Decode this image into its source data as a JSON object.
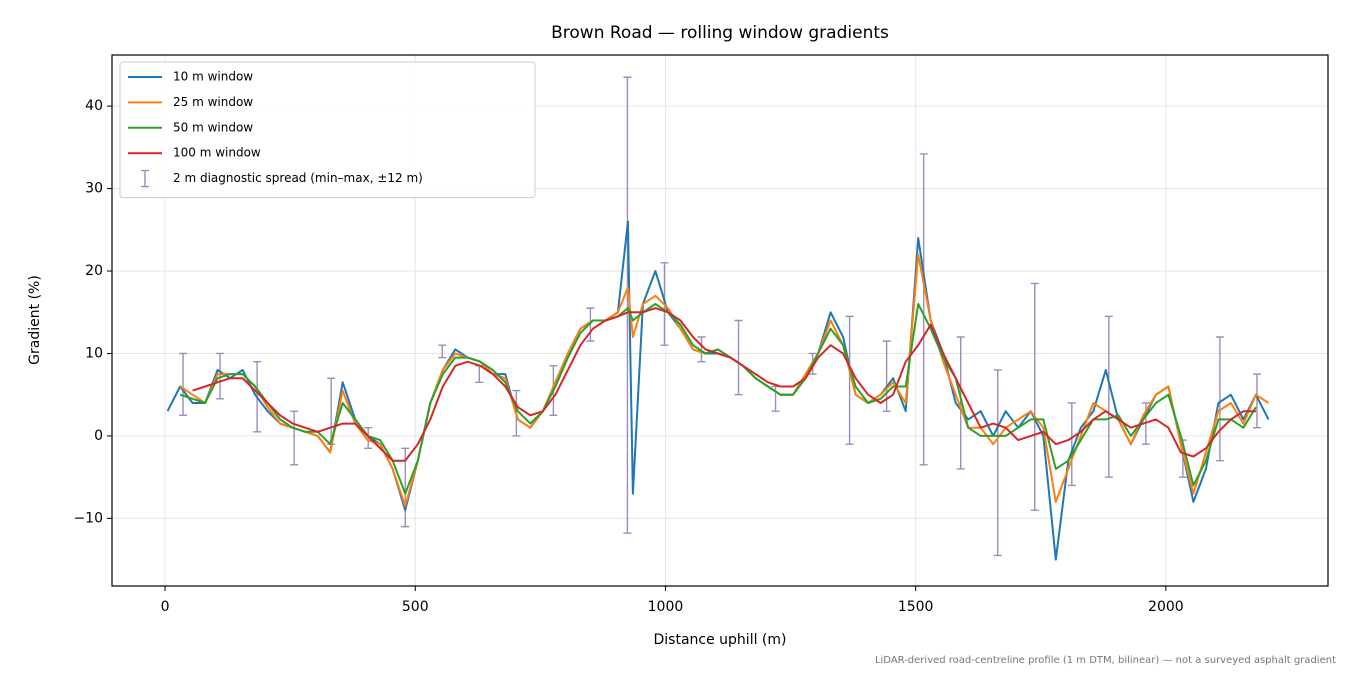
{
  "chart_data": {
    "type": "line",
    "title": "Brown Road — rolling window gradients",
    "xlabel": "Distance uphill (m)",
    "ylabel": "Gradient (%)",
    "footnote": "LiDAR-derived road-centreline profile (1 m DTM, bilinear) — not a surveyed asphalt gradient",
    "xlim": [
      -106,
      2324
    ],
    "ylim": [
      -18.2,
      46.2
    ],
    "xticks": [
      0,
      500,
      1000,
      1500,
      2000
    ],
    "yticks": [
      {
        "value": -10,
        "label": "−10"
      },
      0,
      10,
      20,
      30,
      40
    ],
    "grid": true,
    "legend": "upper left",
    "x": [
      5,
      30,
      55,
      80,
      105,
      130,
      155,
      180,
      205,
      230,
      255,
      280,
      305,
      330,
      355,
      380,
      405,
      430,
      455,
      480,
      505,
      530,
      555,
      580,
      605,
      630,
      655,
      680,
      705,
      730,
      755,
      780,
      805,
      830,
      855,
      880,
      905,
      925,
      935,
      955,
      980,
      1005,
      1030,
      1055,
      1080,
      1105,
      1130,
      1155,
      1180,
      1205,
      1230,
      1255,
      1280,
      1305,
      1330,
      1355,
      1380,
      1405,
      1430,
      1455,
      1480,
      1505,
      1530,
      1555,
      1580,
      1605,
      1630,
      1655,
      1680,
      1705,
      1730,
      1755,
      1780,
      1805,
      1830,
      1855,
      1880,
      1905,
      1930,
      1955,
      1980,
      2005,
      2030,
      2055,
      2080,
      2105,
      2130,
      2155,
      2180,
      2205
    ],
    "series": [
      {
        "name": "10 m window",
        "color": "#1f77b4",
        "values": [
          3,
          6,
          4,
          4,
          8,
          7,
          8,
          5,
          3,
          1.5,
          1,
          0.5,
          0,
          -2,
          6.5,
          2,
          0,
          -1,
          -4,
          -9,
          -3,
          4,
          8,
          10.5,
          9.5,
          9,
          7.5,
          7.5,
          2,
          1,
          3,
          6.5,
          10,
          13,
          14,
          14,
          15,
          26,
          -7,
          16,
          20,
          15,
          13,
          10.5,
          10,
          10,
          9.5,
          8.5,
          7,
          6,
          5,
          5,
          7.5,
          10,
          15,
          12,
          5,
          4,
          5,
          7,
          3,
          24,
          14,
          10,
          4,
          2,
          3,
          0,
          3,
          1,
          3,
          0,
          -15,
          -3,
          1,
          3,
          8,
          2,
          -1,
          2,
          5,
          6,
          -1,
          -8,
          -4,
          4,
          5,
          2,
          5,
          2
        ]
      },
      {
        "name": "25 m window",
        "color": "#ff7f0e",
        "values": [
          null,
          6,
          5,
          4,
          7.5,
          7.5,
          7.5,
          6,
          3.5,
          1.5,
          1,
          0.5,
          0,
          -2,
          5.5,
          1.5,
          -0.5,
          -1,
          -4,
          -8.5,
          -3,
          4,
          8,
          10,
          9.5,
          9,
          7.5,
          7,
          2,
          1,
          3,
          6.5,
          10,
          13,
          14,
          14,
          15,
          18,
          12,
          16,
          17,
          15.5,
          13,
          10.5,
          10,
          10.5,
          9.5,
          8.5,
          7,
          6,
          5,
          5,
          7.5,
          10,
          14,
          11,
          5,
          4,
          5,
          6.5,
          4,
          22,
          14,
          9,
          5,
          1,
          1,
          -1,
          1,
          2,
          3,
          1,
          -8,
          -4,
          0,
          4,
          3,
          2,
          -1,
          2.5,
          5,
          6,
          -1,
          -7,
          -2,
          3,
          4,
          1.5,
          5,
          4
        ]
      },
      {
        "name": "50 m window",
        "color": "#2ca02c",
        "values": [
          null,
          5,
          4.5,
          4,
          7,
          7.5,
          7.5,
          6,
          4,
          2,
          1,
          0.5,
          0.5,
          -1,
          4,
          2,
          0,
          -0.5,
          -3,
          -7,
          -3,
          4,
          7.5,
          9.5,
          9.5,
          9,
          8,
          6.5,
          3,
          1.5,
          3,
          6,
          9.5,
          12.5,
          14,
          14,
          14.5,
          15.5,
          14,
          15,
          16,
          15,
          13.5,
          11,
          10,
          10.5,
          9.5,
          8.5,
          7,
          6,
          5,
          5,
          7,
          10,
          13,
          11,
          6,
          4,
          4.5,
          6,
          6,
          16,
          13,
          9.5,
          7,
          1,
          0,
          0,
          0,
          1,
          2,
          2,
          -4,
          -3,
          -0.5,
          2,
          2,
          2.5,
          0,
          2,
          4,
          5,
          0,
          -6,
          -3,
          2,
          2,
          1,
          3.5,
          null
        ]
      },
      {
        "name": "100 m window",
        "color": "#d62728",
        "values": [
          null,
          null,
          5.5,
          6,
          6.5,
          7,
          7,
          5.5,
          4,
          2.5,
          1.5,
          1,
          0.5,
          1,
          1.5,
          1.5,
          0,
          -1.5,
          -3,
          -3,
          -1,
          2,
          6,
          8.5,
          9,
          8.5,
          7.5,
          6,
          3.5,
          2.5,
          3,
          5,
          8,
          11,
          13,
          14,
          14.5,
          15,
          15,
          15,
          15.5,
          15,
          14,
          12,
          10.5,
          10,
          9.5,
          8.5,
          7.5,
          6.5,
          6,
          6,
          7,
          9.5,
          11,
          10,
          7,
          5,
          4,
          5,
          9,
          11,
          13.5,
          10,
          7,
          4,
          1,
          1.5,
          1,
          -0.5,
          0,
          0.5,
          -1,
          -0.5,
          0.5,
          2,
          3,
          2,
          1,
          1.5,
          2,
          1,
          -2,
          -2.5,
          -1.5,
          0.5,
          2,
          3,
          3,
          null
        ]
      }
    ],
    "errorbars": {
      "name": "2 m diagnostic spread (min–max, ±12 m)",
      "color": "#9a8fbb",
      "x": [
        36,
        110,
        184,
        258,
        332,
        406,
        480,
        554,
        628,
        702,
        776,
        850,
        924,
        998,
        1072,
        1146,
        1220,
        1294,
        1368,
        1442,
        1516,
        1590,
        1664,
        1738,
        1812,
        1886,
        1960,
        2034,
        2108,
        2182
      ],
      "low": [
        2.5,
        4.5,
        0.5,
        -3.5,
        -1,
        -1.5,
        -11,
        9.5,
        6.5,
        0,
        2.5,
        11.5,
        -11.8,
        11,
        9,
        5,
        3,
        7.5,
        -1,
        3,
        -3.5,
        -4,
        -14.5,
        -9,
        -6,
        -5,
        -1,
        -5,
        -3,
        1
      ],
      "high": [
        10,
        10,
        9,
        3,
        7,
        1,
        -1.5,
        11,
        8.5,
        5.5,
        8.5,
        15.5,
        43.5,
        21,
        12,
        14,
        6,
        10,
        14.5,
        11.5,
        34.2,
        12,
        8,
        18.5,
        4,
        14.5,
        4,
        -0.5,
        12,
        7.5
      ]
    }
  }
}
